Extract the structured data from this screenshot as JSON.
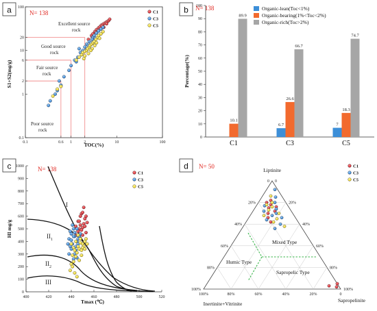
{
  "colors": {
    "c1": "#d41f2a",
    "c3": "#2f86d6",
    "c5": "#f6e21a",
    "lean": "#3d8fd8",
    "bearing": "#f26a2e",
    "rich": "#a6a6a6",
    "n_label": "#e0261f",
    "grid_red": "#f08080",
    "green_dash": "#39b54a"
  },
  "chart_data": [
    {
      "panel": "a",
      "type": "scatter",
      "n_label": "N= 138",
      "xlabel": "TOC(%)",
      "ylabel": "S1+S2(mg/g)",
      "x_scale": "log",
      "y_scale": "log",
      "xlim": [
        0.1,
        100
      ],
      "ylim": [
        0.1,
        100
      ],
      "x_ticks": [
        "0.1",
        "0.6",
        "1",
        "2",
        "10",
        "100"
      ],
      "y_ticks": [
        "0.1",
        "1",
        "2",
        "6",
        "10",
        "20",
        "100"
      ],
      "regions": [
        "Excellent source rock",
        "Good source rock",
        "Fair source rock",
        "Poor source rock"
      ],
      "legend": [
        "C1",
        "C3",
        "C5"
      ],
      "series": [
        {
          "name": "C1",
          "points": [
            [
              2.4,
              18
            ],
            [
              2.8,
              22
            ],
            [
              3.0,
              24
            ],
            [
              3.3,
              27
            ],
            [
              3.6,
              30
            ],
            [
              4.0,
              33
            ],
            [
              4.3,
              35
            ],
            [
              4.6,
              38
            ],
            [
              5.0,
              40
            ],
            [
              5.4,
              42
            ],
            [
              5.8,
              44
            ],
            [
              6.2,
              46
            ],
            [
              6.6,
              48
            ],
            [
              7.0,
              52
            ],
            [
              3.5,
              26
            ],
            [
              4.8,
              36
            ],
            [
              5.2,
              34
            ],
            [
              6.0,
              41
            ],
            [
              2.9,
              20
            ],
            [
              3.9,
              29
            ]
          ]
        },
        {
          "name": "C3",
          "points": [
            [
              0.32,
              0.55
            ],
            [
              0.35,
              0.7
            ],
            [
              0.45,
              1.0
            ],
            [
              0.5,
              1.2
            ],
            [
              0.55,
              2.0
            ],
            [
              0.7,
              2.5
            ],
            [
              1.0,
              4.5
            ],
            [
              1.2,
              6
            ],
            [
              1.4,
              7
            ],
            [
              1.6,
              9
            ],
            [
              1.8,
              10
            ],
            [
              2.0,
              12
            ],
            [
              2.2,
              14
            ],
            [
              2.5,
              16
            ],
            [
              2.7,
              15
            ],
            [
              3.0,
              20
            ],
            [
              3.2,
              22
            ],
            [
              3.6,
              25
            ],
            [
              4.0,
              28
            ],
            [
              4.5,
              31
            ],
            [
              5.0,
              34
            ],
            [
              1.5,
              11
            ],
            [
              1.7,
              8
            ],
            [
              2.1,
              10
            ],
            [
              2.4,
              13
            ],
            [
              2.9,
              18
            ],
            [
              3.4,
              19
            ],
            [
              1.3,
              5.5
            ],
            [
              0.9,
              3.5
            ],
            [
              0.6,
              1.6
            ]
          ]
        },
        {
          "name": "C5",
          "points": [
            [
              0.4,
              0.9
            ],
            [
              0.5,
              1.3
            ],
            [
              0.6,
              1.5
            ],
            [
              1.3,
              6
            ],
            [
              1.5,
              7
            ],
            [
              1.7,
              8
            ],
            [
              1.8,
              9
            ],
            [
              2.0,
              9.5
            ],
            [
              2.2,
              10
            ],
            [
              2.3,
              11
            ],
            [
              2.5,
              12
            ],
            [
              2.6,
              13
            ],
            [
              2.8,
              14
            ],
            [
              3.0,
              15
            ],
            [
              3.2,
              16
            ],
            [
              3.5,
              18
            ],
            [
              3.8,
              20
            ],
            [
              4.0,
              22
            ],
            [
              4.5,
              24
            ],
            [
              5.0,
              27
            ],
            [
              2.0,
              7.5
            ],
            [
              2.4,
              8.5
            ],
            [
              2.9,
              11
            ],
            [
              3.3,
              13
            ],
            [
              1.9,
              6.5
            ],
            [
              2.7,
              10
            ],
            [
              3.6,
              15
            ],
            [
              4.2,
              19
            ]
          ]
        }
      ]
    },
    {
      "panel": "b",
      "type": "bar",
      "n_label": "N= 138",
      "ylabel": "Percentage(%)",
      "ylim": [
        0,
        100
      ],
      "y_ticks": [
        "0",
        "10",
        "20",
        "30",
        "40",
        "50",
        "60",
        "70",
        "80",
        "90",
        "100"
      ],
      "categories": [
        "C1",
        "C3",
        "C5"
      ],
      "series": [
        {
          "name": "Organic-lean(Toc<1%)",
          "values": [
            0,
            6.7,
            7
          ],
          "labels": [
            "",
            "6.7",
            "7"
          ]
        },
        {
          "name": "Organic-bearing(1%<Toc<2%)",
          "values": [
            10.1,
            26.6,
            18.3
          ],
          "labels": [
            "10.1",
            "26.6",
            "18.3"
          ]
        },
        {
          "name": "Organic-rich(Toc>2%)",
          "values": [
            89.9,
            66.7,
            74.7
          ],
          "labels": [
            "89.9",
            "66.7",
            "74.7"
          ]
        }
      ]
    },
    {
      "panel": "c",
      "type": "scatter",
      "n_label": "N= 138",
      "xlabel": "Tmax (℃)",
      "ylabel": "HI mg/g",
      "xlim": [
        400,
        520
      ],
      "ylim": [
        0,
        1000
      ],
      "x_ticks": [
        "400",
        "420",
        "440",
        "460",
        "480",
        "500",
        "520"
      ],
      "y_ticks": [
        "0",
        "100",
        "200",
        "300",
        "400",
        "500",
        "600",
        "700",
        "800",
        "900",
        "1000"
      ],
      "regions": [
        "I",
        "II1",
        "II2",
        "III"
      ],
      "legend": [
        "C1",
        "C3",
        "C5"
      ],
      "series": [
        {
          "name": "C1",
          "points": [
            [
              446,
              560
            ],
            [
              448,
              530
            ],
            [
              450,
              510
            ],
            [
              452,
              580
            ],
            [
              449,
              620
            ],
            [
              451,
              540
            ],
            [
              447,
              500
            ],
            [
              453,
              470
            ],
            [
              450,
              450
            ],
            [
              446,
              480
            ],
            [
              452,
              520
            ],
            [
              448,
              600
            ],
            [
              444,
              520
            ],
            [
              454,
              550
            ],
            [
              451,
              670
            ],
            [
              449,
              490
            ],
            [
              445,
              450
            ],
            [
              453,
              600
            ],
            [
              447,
              560
            ],
            [
              450,
              630
            ]
          ]
        },
        {
          "name": "C3",
          "points": [
            [
              438,
              420
            ],
            [
              440,
              460
            ],
            [
              442,
              500
            ],
            [
              441,
              380
            ],
            [
              443,
              440
            ],
            [
              445,
              400
            ],
            [
              440,
              340
            ],
            [
              438,
              300
            ],
            [
              442,
              260
            ],
            [
              444,
              360
            ],
            [
              446,
              420
            ],
            [
              439,
              480
            ],
            [
              441,
              530
            ],
            [
              443,
              470
            ],
            [
              445,
              500
            ],
            [
              447,
              440
            ],
            [
              437,
              380
            ],
            [
              440,
              410
            ],
            [
              444,
              330
            ],
            [
              446,
              380
            ],
            [
              448,
              460
            ],
            [
              442,
              440
            ],
            [
              439,
              360
            ],
            [
              443,
              300
            ],
            [
              445,
              270
            ]
          ]
        },
        {
          "name": "C5",
          "points": [
            [
              440,
              380
            ],
            [
              442,
              350
            ],
            [
              444,
              400
            ],
            [
              446,
              360
            ],
            [
              448,
              420
            ],
            [
              450,
              380
            ],
            [
              452,
              400
            ],
            [
              447,
              340
            ],
            [
              445,
              310
            ],
            [
              443,
              330
            ],
            [
              441,
              290
            ],
            [
              449,
              330
            ],
            [
              451,
              360
            ],
            [
              453,
              420
            ],
            [
              446,
              450
            ],
            [
              448,
              390
            ],
            [
              450,
              350
            ],
            [
              444,
              280
            ],
            [
              442,
              240
            ],
            [
              440,
              220
            ],
            [
              439,
              170
            ],
            [
              441,
              200
            ],
            [
              443,
              150
            ],
            [
              445,
              120
            ],
            [
              447,
              250
            ],
            [
              449,
              290
            ],
            [
              452,
              340
            ],
            [
              454,
              380
            ]
          ]
        }
      ]
    },
    {
      "panel": "d",
      "type": "scatter",
      "n_label": "N= 50",
      "apex_top": "Liptinite",
      "apex_left": "Inertinite+Vitrinite",
      "apex_right": "Sapropelinite",
      "axis_ticks_left": [
        "0",
        "20%",
        "40%",
        "60%",
        "80%",
        "100%"
      ],
      "axis_ticks_right": [
        "100%",
        "80%",
        "60%",
        "40%",
        "20%",
        "0"
      ],
      "axis_ticks_bottom": [
        "100%",
        "80%",
        "60%",
        "40%",
        "20%",
        "0"
      ],
      "regions": [
        "Mixed Type",
        "Humic Type",
        "Sapropelic Type"
      ],
      "legend": [
        "C1",
        "C3",
        "C5"
      ],
      "series": [
        {
          "name": "C1",
          "points": [
            [
              0.82,
              0.1,
              0.08
            ],
            [
              0.78,
              0.12,
              0.1
            ],
            [
              0.75,
              0.15,
              0.1
            ],
            [
              0.8,
              0.14,
              0.06
            ],
            [
              0.72,
              0.12,
              0.16
            ],
            [
              0.7,
              0.18,
              0.12
            ],
            [
              0.76,
              0.09,
              0.15
            ],
            [
              0.66,
              0.2,
              0.14
            ],
            [
              0.62,
              0.2,
              0.18
            ],
            [
              0.05,
              0.0,
              0.95
            ],
            [
              0.02,
              0.02,
              0.96
            ],
            [
              0.03,
              0.07,
              0.9
            ]
          ]
        },
        {
          "name": "C3",
          "points": [
            [
              0.92,
              0.02,
              0.06
            ],
            [
              0.85,
              0.05,
              0.1
            ],
            [
              0.8,
              0.08,
              0.12
            ],
            [
              0.77,
              0.17,
              0.06
            ],
            [
              0.74,
              0.1,
              0.16
            ],
            [
              0.7,
              0.12,
              0.18
            ],
            [
              0.68,
              0.16,
              0.16
            ],
            [
              0.64,
              0.22,
              0.14
            ],
            [
              0.6,
              0.14,
              0.26
            ],
            [
              0.56,
              0.2,
              0.24
            ],
            [
              0.72,
              0.2,
              0.08
            ],
            [
              0.66,
              0.1,
              0.24
            ]
          ]
        },
        {
          "name": "C5",
          "points": [
            [
              0.86,
              0.08,
              0.06
            ],
            [
              0.8,
              0.1,
              0.1
            ],
            [
              0.76,
              0.12,
              0.12
            ],
            [
              0.73,
              0.16,
              0.11
            ],
            [
              0.7,
              0.1,
              0.2
            ],
            [
              0.68,
              0.22,
              0.1
            ],
            [
              0.65,
              0.14,
              0.21
            ],
            [
              0.62,
              0.18,
              0.2
            ],
            [
              0.58,
              0.12,
              0.3
            ],
            [
              0.78,
              0.15,
              0.07
            ]
          ]
        }
      ]
    }
  ],
  "panels": {
    "a": "a",
    "b": "b",
    "c": "c",
    "d": "d"
  }
}
